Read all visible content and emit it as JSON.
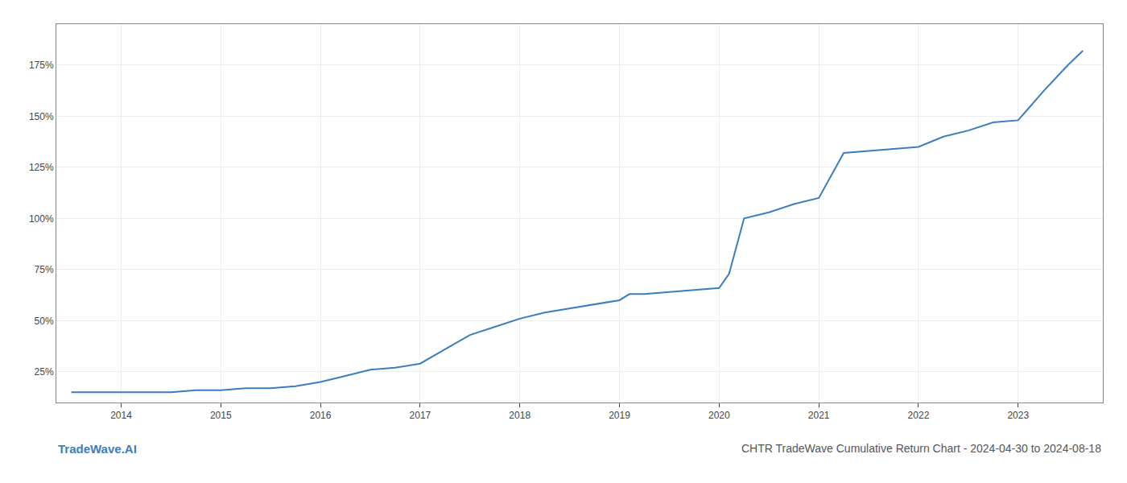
{
  "chart_data": {
    "type": "line",
    "title": "CHTR TradeWave Cumulative Return Chart - 2024-04-30 to 2024-08-18",
    "annotations": [
      "TradeWave.AI"
    ],
    "x": [
      2013.5,
      2014.0,
      2014.25,
      2014.5,
      2014.75,
      2015.0,
      2015.25,
      2015.5,
      2015.75,
      2016.0,
      2016.25,
      2016.5,
      2016.75,
      2017.0,
      2017.25,
      2017.5,
      2017.75,
      2018.0,
      2018.25,
      2018.5,
      2018.75,
      2019.0,
      2019.1,
      2019.25,
      2019.5,
      2019.75,
      2020.0,
      2020.1,
      2020.25,
      2020.5,
      2020.75,
      2021.0,
      2021.25,
      2021.5,
      2021.75,
      2022.0,
      2022.25,
      2022.5,
      2022.75,
      2023.0,
      2023.25,
      2023.5,
      2023.65
    ],
    "values": [
      15,
      15,
      15,
      15,
      16,
      16,
      17,
      17,
      18,
      20,
      23,
      26,
      27,
      29,
      36,
      43,
      47,
      51,
      54,
      56,
      58,
      60,
      63,
      63,
      64,
      65,
      66,
      73,
      100,
      103,
      107,
      110,
      132,
      133,
      134,
      135,
      140,
      143,
      147,
      148,
      162,
      175,
      182
    ],
    "color": "#3a7ebf",
    "xlim": [
      2013.35,
      2023.85
    ],
    "xticks": [
      2014,
      2015,
      2016,
      2017,
      2018,
      2019,
      2020,
      2021,
      2022,
      2023
    ],
    "ylim": [
      10,
      195
    ],
    "yticks": [
      {
        "value": 25,
        "label": "25%"
      },
      {
        "value": 50,
        "label": "50%"
      },
      {
        "value": 75,
        "label": "75%"
      },
      {
        "value": 100,
        "label": "100%"
      },
      {
        "value": 125,
        "label": "125%"
      },
      {
        "value": 150,
        "label": "150%"
      },
      {
        "value": 175,
        "label": "175%"
      }
    ],
    "grid": true
  }
}
